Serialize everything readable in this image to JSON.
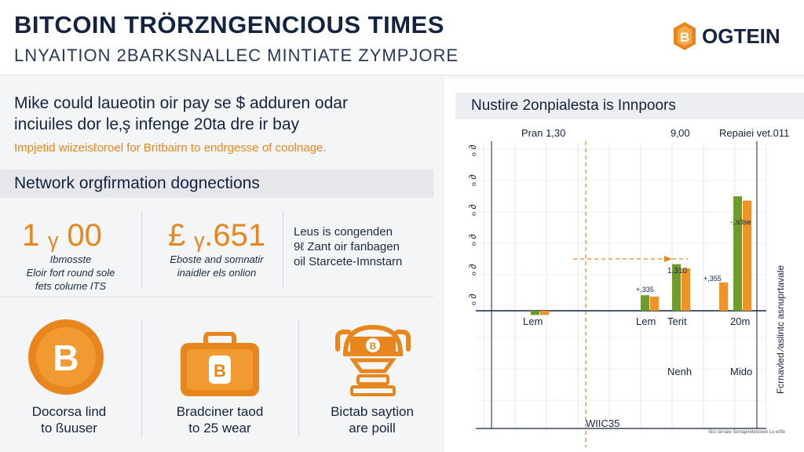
{
  "header": {
    "title": "BITCOIN TRÖRZNGENCIOUS TIMES",
    "subtitle": "LNYAITION 2BARKSNALLEC MINTIATE ZYMPJORE",
    "brand_name": "OGTEIN",
    "brand_icon": "bitcoin-coin-icon",
    "brand_color": "#e8861e"
  },
  "intro": {
    "line1": "Mike could laueotin oir pay se $ adduren odar",
    "line2": "inciuiles dor le‚ş infenge 20ta dre ir bay",
    "note": "Impjetid wiizeisℓoroel for Britbairn to endrgesse of coolnage."
  },
  "section": {
    "title": "Network orgfirmation dognections"
  },
  "stats": [
    {
      "value": "1 ᵧ 00",
      "caption_lines": [
        "Ibmosste",
        "Eloir fort round sole",
        "fets colume ITS"
      ]
    },
    {
      "value": "£ ᵧ.651",
      "caption_lines": [
        "Eboste and somnatir",
        "inaidler els onlion"
      ]
    }
  ],
  "stat_text_lines": [
    "Leus is congenden",
    "9ℓ Zant oir fanbagen",
    "oil Starcete-Imnstarn"
  ],
  "features": [
    {
      "icon": "bitcoin-coin-icon",
      "caption_lines": [
        "Docorsa lind",
        "to ßuuser"
      ]
    },
    {
      "icon": "bitcoin-wallet-icon",
      "caption_lines": [
        "Bradciner taod",
        "to 25 wear"
      ]
    },
    {
      "icon": "mining-machine-icon",
      "caption_lines": [
        "Bictab saytion",
        "are poill"
      ]
    }
  ],
  "chart_panel": {
    "title": "Nustire 2onpialesta is Innpoors"
  },
  "chart_data": {
    "type": "bar",
    "title": "Nustire 2onpialesta is Innpoors",
    "header_labels": [
      "Pran 1,30",
      "9‚00",
      "Repaiei vet.011"
    ],
    "y_tick_labels": [
      "ℴ  ∂",
      "ℴ  ∂",
      "ℴ  ∂",
      "ℴ  ∂",
      "ℴ  ∂",
      "ℴ  ∂"
    ],
    "right_axis_label": "Fcrnavled ∕aslintc asnuprtavale",
    "categories": [
      "Lem",
      "Lem",
      "Terit",
      "",
      "20m"
    ],
    "bottom_labels": [
      "Nenh",
      "Mido"
    ],
    "footer_label": "WIIC35",
    "bar_labels": [
      "+,335",
      "1,310",
      "+,355",
      "-‚.s3se"
    ],
    "series": [
      {
        "color": "#6e9a2e",
        "values": [
          -0.3,
          1.1,
          3.3,
          0,
          8.1
        ]
      },
      {
        "color": "#f0922a",
        "values": [
          -0.3,
          1.0,
          3.0,
          2.0,
          7.8
        ]
      }
    ],
    "footnote": "Sicr ∕arnaie Serrapiretesroen Lu ertfe"
  }
}
